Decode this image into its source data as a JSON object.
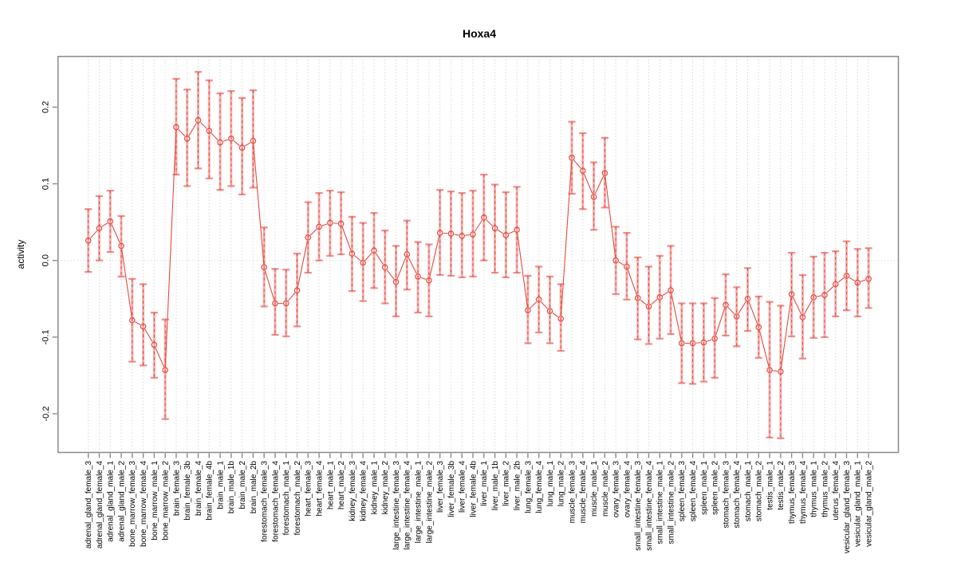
{
  "title": "Hoxa4",
  "y_axis": {
    "label": "activity",
    "tick_labels": [
      "-0.2",
      "-0.1",
      "0.0",
      "0.1",
      "0.2"
    ],
    "tick_values": [
      -0.2,
      -0.1,
      0.0,
      0.1,
      0.2
    ]
  },
  "colors": {
    "series_red": "#e8483f",
    "error_bar_fill": "rgba(232,72,65,0.42)",
    "error_bar_cap": "rgba(232,72,65,0.62)",
    "grid_gray": "#c9c9c9",
    "axis_gray": "#8a8a8a",
    "text_black": "#000000",
    "background": "#ffffff"
  },
  "chart_data": {
    "type": "line",
    "subtype": "points-with-error-bars",
    "title": "Hoxa4",
    "xlabel": "",
    "ylabel": "activity",
    "ylim": [
      -0.251,
      0.267
    ],
    "grid": "dotted vertical line per category; dotted horizontal line at y=0",
    "legend": "none",
    "marker": "open-circle",
    "categories": [
      "adrenal_gland_female_3",
      "adrenal_gland_female_4",
      "adrenal_gland_male_1",
      "adrenal_gland_male_2",
      "bone_marrow_female_3",
      "bone_marrow_female_4",
      "bone_marrow_male_1",
      "bone_marrow_male_2",
      "brain_female_3",
      "brain_female_3b",
      "brain_female_4",
      "brain_female_4b",
      "brain_male_1",
      "brain_male_1b",
      "brain_male_2",
      "brain_male_2b",
      "forestomach_female_3",
      "forestomach_female_4",
      "forestomach_male_1",
      "forestomach_male_2",
      "heart_female_3",
      "heart_female_4",
      "heart_male_1",
      "heart_male_2",
      "kidney_female_3",
      "kidney_female_4",
      "kidney_male_1",
      "kidney_male_2",
      "large_intestine_female_3",
      "large_intestine_female_4",
      "large_intestine_male_1",
      "large_intestine_male_2",
      "liver_female_3",
      "liver_female_3b",
      "liver_female_4",
      "liver_female_4b",
      "liver_male_1",
      "liver_male_1b",
      "liver_male_2",
      "liver_male_2b",
      "lung_female_3",
      "lung_female_4",
      "lung_male_1",
      "lung_male_2",
      "muscle_female_3",
      "muscle_female_4",
      "muscle_male_1",
      "muscle_male_2",
      "ovary_female_3",
      "ovary_female_4",
      "small_intestine_female_3",
      "small_intestine_female_4",
      "small_intestine_male_1",
      "small_intestine_male_2",
      "spleen_female_3",
      "spleen_female_4",
      "spleen_male_1",
      "spleen_male_2",
      "stomach_female_3",
      "stomach_female_4",
      "stomach_male_1",
      "stomach_male_2",
      "testis_male_1",
      "testis_male_2",
      "thymus_female_3",
      "thymus_female_4",
      "thymus_male_1",
      "thymus_male_2",
      "uterus_female_4",
      "vesicular_gland_female_3",
      "vesicular_gland_male_1",
      "vesicular_gland_male_2"
    ],
    "series": [
      {
        "name": "activity",
        "values": [
          0.026,
          0.042,
          0.051,
          0.019,
          -0.078,
          -0.086,
          -0.11,
          -0.143,
          0.174,
          0.159,
          0.183,
          0.169,
          0.154,
          0.159,
          0.147,
          0.156,
          -0.009,
          -0.056,
          -0.056,
          -0.039,
          0.03,
          0.044,
          0.049,
          0.048,
          0.009,
          -0.003,
          0.013,
          -0.009,
          -0.028,
          0.008,
          -0.021,
          -0.026,
          0.036,
          0.035,
          0.032,
          0.034,
          0.056,
          0.042,
          0.033,
          0.04,
          -0.065,
          -0.051,
          -0.066,
          -0.076,
          0.134,
          0.117,
          0.083,
          0.114,
          0.0,
          -0.008,
          -0.049,
          -0.06,
          -0.048,
          -0.039,
          -0.108,
          -0.108,
          -0.107,
          -0.102,
          -0.058,
          -0.073,
          -0.05,
          -0.087,
          -0.143,
          -0.145,
          -0.044,
          -0.074,
          -0.048,
          -0.045,
          -0.031,
          -0.02,
          -0.029,
          -0.024
        ],
        "upper": [
          0.067,
          0.084,
          0.091,
          0.058,
          -0.024,
          -0.031,
          -0.068,
          -0.077,
          0.237,
          0.223,
          0.246,
          0.235,
          0.218,
          0.221,
          0.212,
          0.222,
          0.043,
          -0.011,
          -0.012,
          0.009,
          0.076,
          0.088,
          0.091,
          0.089,
          0.057,
          0.049,
          0.062,
          0.039,
          0.019,
          0.052,
          0.024,
          0.021,
          0.092,
          0.09,
          0.088,
          0.091,
          0.112,
          0.099,
          0.089,
          0.096,
          -0.02,
          -0.008,
          -0.021,
          -0.031,
          0.181,
          0.166,
          0.128,
          0.16,
          0.044,
          0.036,
          0.004,
          -0.008,
          0.006,
          0.019,
          -0.056,
          -0.056,
          -0.056,
          -0.049,
          -0.018,
          -0.035,
          -0.01,
          -0.047,
          -0.054,
          -0.059,
          0.01,
          -0.019,
          0.005,
          0.01,
          0.012,
          0.025,
          0.015,
          0.016
        ],
        "lower": [
          -0.015,
          0.0,
          0.011,
          -0.021,
          -0.132,
          -0.137,
          -0.153,
          -0.207,
          0.112,
          0.097,
          0.12,
          0.107,
          0.092,
          0.097,
          0.086,
          0.095,
          -0.06,
          -0.097,
          -0.099,
          -0.086,
          -0.016,
          0.0,
          0.006,
          0.008,
          -0.04,
          -0.053,
          -0.036,
          -0.056,
          -0.073,
          -0.038,
          -0.068,
          -0.073,
          -0.019,
          -0.02,
          -0.022,
          -0.021,
          0.0,
          -0.016,
          -0.022,
          -0.016,
          -0.108,
          -0.094,
          -0.108,
          -0.118,
          0.087,
          0.067,
          0.04,
          0.069,
          -0.044,
          -0.051,
          -0.103,
          -0.109,
          -0.102,
          -0.096,
          -0.16,
          -0.161,
          -0.158,
          -0.153,
          -0.098,
          -0.112,
          -0.092,
          -0.127,
          -0.231,
          -0.232,
          -0.099,
          -0.128,
          -0.101,
          -0.1,
          -0.073,
          -0.065,
          -0.073,
          -0.062
        ]
      }
    ]
  }
}
